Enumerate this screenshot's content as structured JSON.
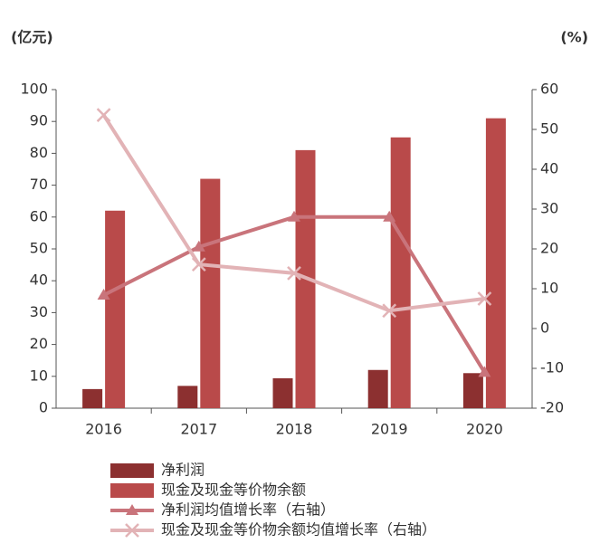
{
  "chart_data": {
    "type": "bar-line",
    "y_label": "(亿元)",
    "y2_label": "(%)",
    "categories": [
      "2016",
      "2017",
      "2018",
      "2019",
      "2020"
    ],
    "ylim": [
      0,
      100
    ],
    "yticks": [
      0,
      10,
      20,
      30,
      40,
      50,
      60,
      70,
      80,
      90,
      100
    ],
    "y2lim": [
      -20,
      60
    ],
    "y2ticks": [
      -20,
      -10,
      0,
      10,
      20,
      30,
      40,
      50,
      60
    ],
    "series": [
      {
        "name": "净利润",
        "kind": "bar",
        "color": "#8c3030",
        "values": [
          6,
          7,
          9.4,
          12,
          11
        ]
      },
      {
        "name": "现金及现金等价物余额",
        "kind": "bar",
        "color": "#b94a4a",
        "values": [
          62,
          72,
          81,
          85,
          91
        ]
      },
      {
        "name": "净利润均值增长率（右轴）",
        "kind": "line",
        "marker": "triangle",
        "axis": "y2",
        "color": "#c9747b",
        "values": [
          8.4,
          20.5,
          28,
          28,
          -11
        ]
      },
      {
        "name": "现金及现金等价物余额均值增长率（右轴）",
        "kind": "line",
        "marker": "x",
        "axis": "y2",
        "color": "#e2b3b6",
        "values": [
          53.6,
          16.1,
          13.9,
          4.5,
          7.5
        ]
      }
    ]
  }
}
